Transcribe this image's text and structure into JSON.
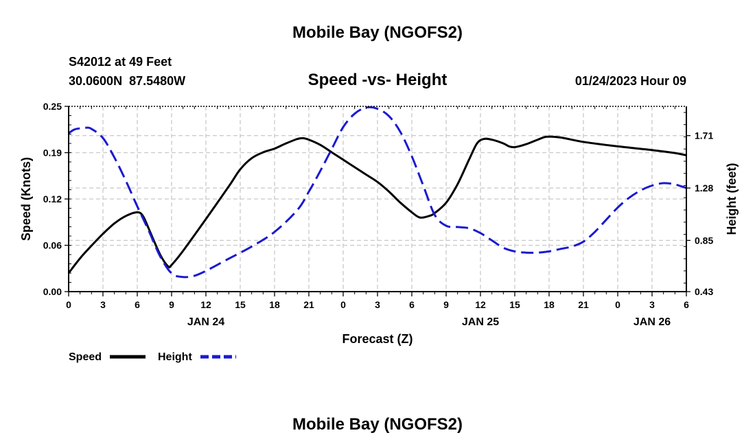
{
  "header": {
    "title": "Mobile Bay (NGOFS2)",
    "station_line": "S42012 at 49 Feet",
    "coords_line": "30.0600N  87.5480W",
    "date_line": "01/24/2023 Hour 09",
    "footer_title": "Mobile Bay (NGOFS2)"
  },
  "chart_data": {
    "type": "line",
    "title": "Speed -vs- Height",
    "xlabel": "Forecast (Z)",
    "ylabel": "Speed (Knots)",
    "y2label": "Height (feet)",
    "x_unit": "hours since 00Z Jan 24",
    "xlim": [
      0,
      54
    ],
    "ylim": [
      0.0,
      0.25
    ],
    "y2lim": [
      0.43,
      1.95
    ],
    "x_ticks": [
      {
        "x": 0,
        "label": "0"
      },
      {
        "x": 3,
        "label": "3"
      },
      {
        "x": 6,
        "label": "6"
      },
      {
        "x": 9,
        "label": "9"
      },
      {
        "x": 12,
        "label": "12"
      },
      {
        "x": 15,
        "label": "15"
      },
      {
        "x": 18,
        "label": "18"
      },
      {
        "x": 21,
        "label": "21"
      },
      {
        "x": 24,
        "label": "0"
      },
      {
        "x": 27,
        "label": "3"
      },
      {
        "x": 30,
        "label": "6"
      },
      {
        "x": 33,
        "label": "9"
      },
      {
        "x": 36,
        "label": "12"
      },
      {
        "x": 39,
        "label": "15"
      },
      {
        "x": 42,
        "label": "18"
      },
      {
        "x": 45,
        "label": "21"
      },
      {
        "x": 48,
        "label": "0"
      },
      {
        "x": 51,
        "label": "3"
      },
      {
        "x": 54,
        "label": "6"
      }
    ],
    "date_labels": [
      {
        "x": 12,
        "label": "JAN 24"
      },
      {
        "x": 36,
        "label": "JAN 25"
      },
      {
        "x": 51,
        "label": "JAN 26"
      }
    ],
    "y_ticks": [
      {
        "v": 0.0,
        "label": "0.00"
      },
      {
        "v": 0.0625,
        "label": "0.06"
      },
      {
        "v": 0.125,
        "label": "0.12"
      },
      {
        "v": 0.1875,
        "label": "0.19"
      },
      {
        "v": 0.25,
        "label": "0.25"
      }
    ],
    "y2_ticks": [
      {
        "v": 0.43,
        "label": "0.43"
      },
      {
        "v": 0.85,
        "label": "0.85"
      },
      {
        "v": 1.28,
        "label": "1.28"
      },
      {
        "v": 1.71,
        "label": "1.71"
      }
    ],
    "series": [
      {
        "name": "Speed",
        "axis": "left",
        "color": "#000000",
        "dash": "solid",
        "points": [
          [
            0,
            0.025
          ],
          [
            1,
            0.045
          ],
          [
            2,
            0.062
          ],
          [
            3,
            0.078
          ],
          [
            4,
            0.092
          ],
          [
            5,
            0.102
          ],
          [
            6,
            0.107
          ],
          [
            6.5,
            0.102
          ],
          [
            7,
            0.085
          ],
          [
            8,
            0.05
          ],
          [
            8.7,
            0.034
          ],
          [
            9,
            0.036
          ],
          [
            10,
            0.055
          ],
          [
            12,
            0.098
          ],
          [
            14,
            0.142
          ],
          [
            15,
            0.165
          ],
          [
            16,
            0.18
          ],
          [
            17,
            0.188
          ],
          [
            18,
            0.193
          ],
          [
            19,
            0.2
          ],
          [
            20,
            0.206
          ],
          [
            20.5,
            0.207
          ],
          [
            21,
            0.205
          ],
          [
            22,
            0.198
          ],
          [
            23,
            0.188
          ],
          [
            24,
            0.178
          ],
          [
            25,
            0.168
          ],
          [
            26,
            0.158
          ],
          [
            27,
            0.148
          ],
          [
            28,
            0.135
          ],
          [
            29,
            0.12
          ],
          [
            30,
            0.107
          ],
          [
            30.7,
            0.1
          ],
          [
            31.5,
            0.102
          ],
          [
            32,
            0.106
          ],
          [
            33,
            0.12
          ],
          [
            34,
            0.145
          ],
          [
            35,
            0.178
          ],
          [
            35.7,
            0.2
          ],
          [
            36.3,
            0.206
          ],
          [
            37,
            0.205
          ],
          [
            38,
            0.2
          ],
          [
            38.5,
            0.196
          ],
          [
            39,
            0.195
          ],
          [
            40,
            0.199
          ],
          [
            41,
            0.205
          ],
          [
            41.8,
            0.209
          ],
          [
            43,
            0.208
          ],
          [
            45,
            0.202
          ],
          [
            48,
            0.196
          ],
          [
            51,
            0.191
          ],
          [
            53,
            0.187
          ],
          [
            54,
            0.184
          ]
        ]
      },
      {
        "name": "Height",
        "axis": "right",
        "color": "#1a1ad2",
        "dash": "dashed",
        "points": [
          [
            0,
            1.73
          ],
          [
            0.5,
            1.76
          ],
          [
            1,
            1.77
          ],
          [
            1.5,
            1.775
          ],
          [
            2,
            1.765
          ],
          [
            3,
            1.69
          ],
          [
            4,
            1.53
          ],
          [
            5,
            1.34
          ],
          [
            6,
            1.13
          ],
          [
            7,
            0.93
          ],
          [
            8,
            0.72
          ],
          [
            9,
            0.58
          ],
          [
            10,
            0.55
          ],
          [
            11,
            0.56
          ],
          [
            12,
            0.6
          ],
          [
            14,
            0.7
          ],
          [
            16,
            0.8
          ],
          [
            18,
            0.92
          ],
          [
            20,
            1.1
          ],
          [
            21,
            1.25
          ],
          [
            22,
            1.42
          ],
          [
            23,
            1.6
          ],
          [
            24,
            1.78
          ],
          [
            25,
            1.89
          ],
          [
            26,
            1.94
          ],
          [
            27,
            1.93
          ],
          [
            28,
            1.87
          ],
          [
            29,
            1.74
          ],
          [
            30,
            1.54
          ],
          [
            31,
            1.3
          ],
          [
            32,
            1.06
          ],
          [
            33,
            0.97
          ],
          [
            34,
            0.96
          ],
          [
            35,
            0.95
          ],
          [
            36,
            0.91
          ],
          [
            37,
            0.85
          ],
          [
            38,
            0.79
          ],
          [
            39,
            0.76
          ],
          [
            40,
            0.75
          ],
          [
            41,
            0.75
          ],
          [
            42,
            0.76
          ],
          [
            43,
            0.78
          ],
          [
            44,
            0.8
          ],
          [
            45,
            0.84
          ],
          [
            46,
            0.92
          ],
          [
            47,
            1.02
          ],
          [
            48,
            1.12
          ],
          [
            49,
            1.2
          ],
          [
            50,
            1.26
          ],
          [
            51,
            1.3
          ],
          [
            52,
            1.32
          ],
          [
            53,
            1.31
          ],
          [
            54,
            1.28
          ]
        ]
      }
    ],
    "legend": [
      {
        "label": "Speed",
        "color": "#000000",
        "dash": "solid"
      },
      {
        "label": "Height",
        "color": "#1a1ad2",
        "dash": "dashed"
      }
    ],
    "legend_position": "bottom-left",
    "grid": true
  }
}
